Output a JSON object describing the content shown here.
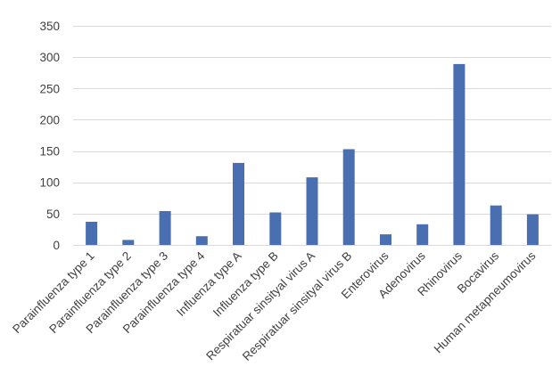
{
  "chart_data": {
    "type": "bar",
    "title": "",
    "xlabel": "",
    "ylabel": "",
    "ylim": [
      0,
      350
    ],
    "yticks": [
      0,
      50,
      100,
      150,
      200,
      250,
      300,
      350
    ],
    "grid": true,
    "legend": "none",
    "bar_color": "#4a6fb0",
    "categories": [
      "Parainfluenza type 1",
      "Parainfluenza type 2",
      "Parainfluenza type 3",
      "Parainfluenza type 4",
      "Influenza type A",
      "Influenza type B",
      "Respiratuar sinsityal virus A",
      "Respiratuar sinsityal virus B",
      "Enterovirus",
      "Adenovirus",
      "Rhinovirus",
      "Bocavirus",
      "Human metapneumovirus"
    ],
    "values": [
      37,
      8,
      54,
      14,
      131,
      52,
      108,
      153,
      17,
      33,
      289,
      63,
      49
    ]
  }
}
